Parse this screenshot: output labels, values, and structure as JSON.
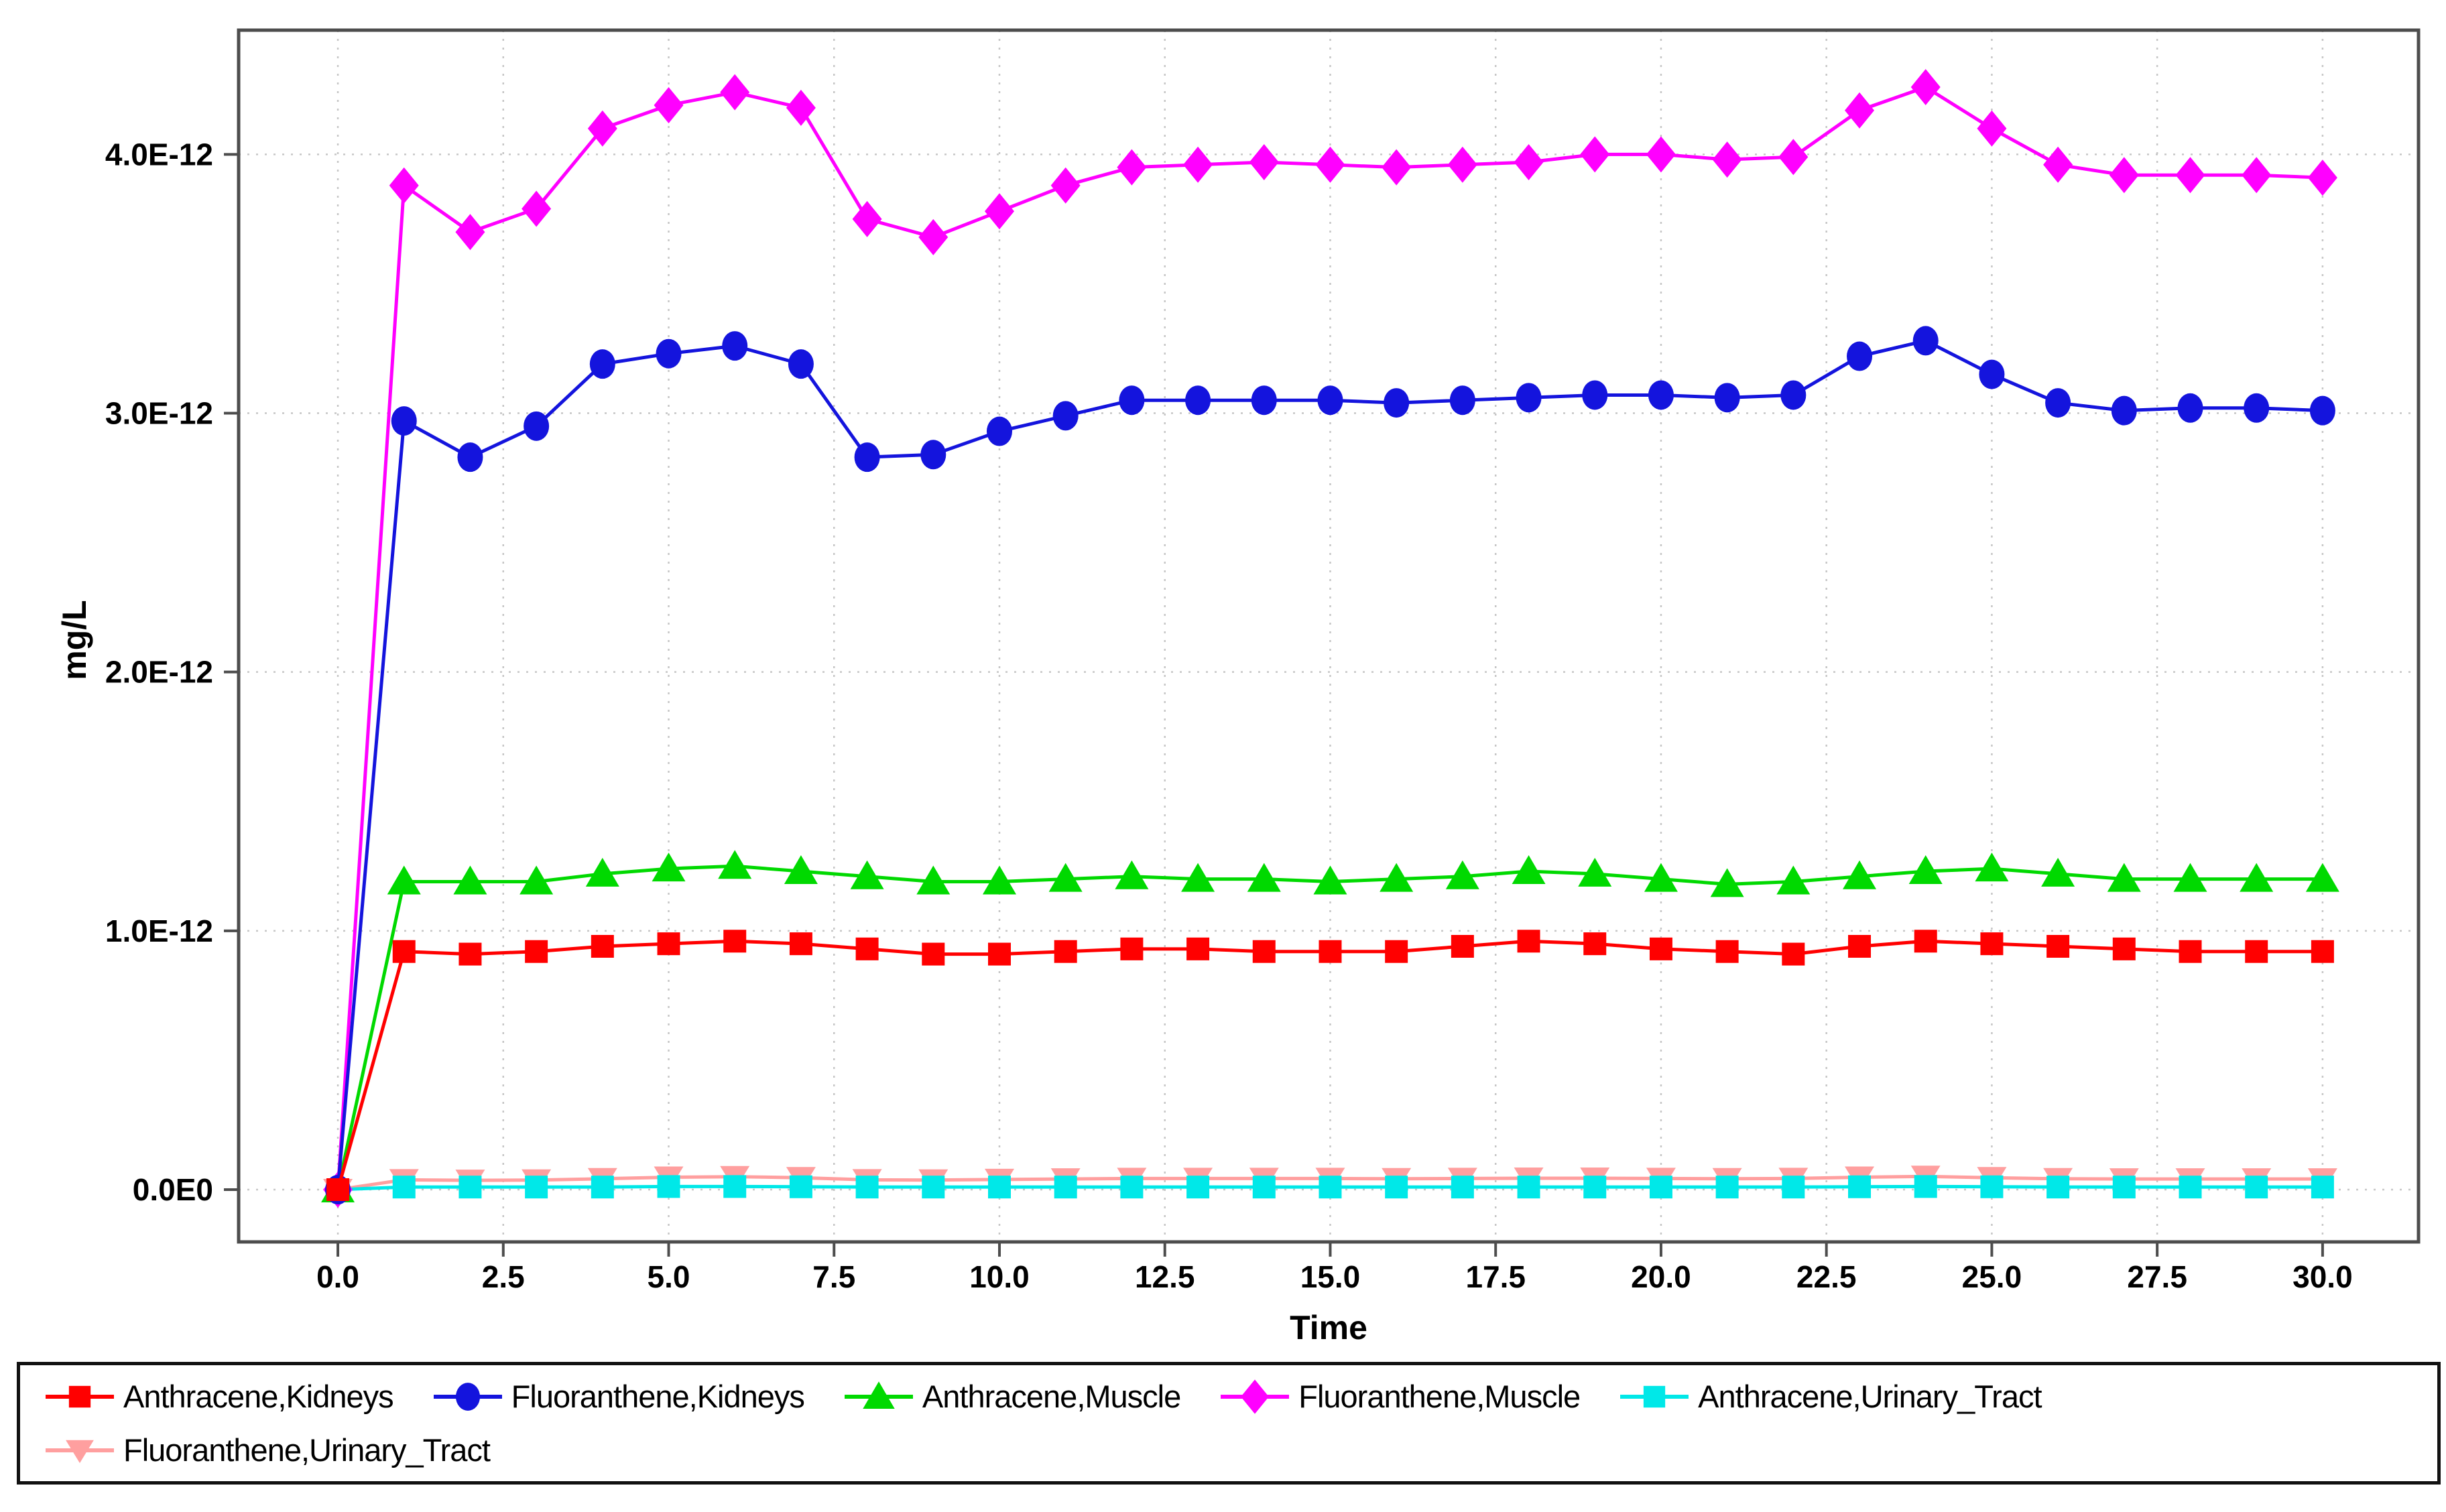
{
  "chart_data": {
    "type": "line",
    "title": "",
    "xlabel": "Time",
    "ylabel": "mg/L",
    "grid": "dotted",
    "legend_position": "bottom",
    "xlim": [
      -1.5,
      31.45
    ],
    "ylim": [
      -2.02e-13,
      4.48e-12
    ],
    "x_ticks": {
      "values": [
        0,
        2.5,
        5,
        7.5,
        10,
        12.5,
        15,
        17.5,
        20,
        22.5,
        25,
        27.5,
        30
      ],
      "labels": [
        "0.0",
        "2.5",
        "5.0",
        "7.5",
        "10.0",
        "12.5",
        "15.0",
        "17.5",
        "20.0",
        "22.5",
        "25.0",
        "27.5",
        "30.0"
      ]
    },
    "y_ticks": {
      "values": [
        0,
        1e-12,
        2e-12,
        3e-12,
        4e-12
      ],
      "labels": [
        "0.0E0",
        "1.0E-12",
        "2.0E-12",
        "3.0E-12",
        "4.0E-12"
      ]
    },
    "x": [
      0,
      1,
      2,
      3,
      4,
      5,
      6,
      7,
      8,
      9,
      10,
      11,
      12,
      13,
      14,
      15,
      16,
      17,
      18,
      19,
      20,
      21,
      22,
      23,
      24,
      25,
      26,
      27,
      28,
      29,
      30
    ],
    "series": [
      {
        "name": "Anthracene,Kidneys",
        "color": "#ff0000",
        "marker": "square",
        "values": [
          0,
          9.2e-13,
          9.1e-13,
          9.2e-13,
          9.4e-13,
          9.5e-13,
          9.6e-13,
          9.5e-13,
          9.3e-13,
          9.1e-13,
          9.1e-13,
          9.2e-13,
          9.3e-13,
          9.3e-13,
          9.2e-13,
          9.2e-13,
          9.2e-13,
          9.4e-13,
          9.6e-13,
          9.5e-13,
          9.3e-13,
          9.2e-13,
          9.1e-13,
          9.4e-13,
          9.6e-13,
          9.5e-13,
          9.4e-13,
          9.3e-13,
          9.2e-13,
          9.2e-13,
          9.2e-13
        ]
      },
      {
        "name": "Fluoranthene,Kidneys",
        "color": "#1414dd",
        "marker": "circle",
        "values": [
          0,
          2.97e-12,
          2.83e-12,
          2.95e-12,
          3.19e-12,
          3.23e-12,
          3.26e-12,
          3.19e-12,
          2.83e-12,
          2.84e-12,
          2.93e-12,
          2.99e-12,
          3.05e-12,
          3.05e-12,
          3.05e-12,
          3.05e-12,
          3.04e-12,
          3.05e-12,
          3.06e-12,
          3.07e-12,
          3.07e-12,
          3.06e-12,
          3.07e-12,
          3.22e-12,
          3.28e-12,
          3.15e-12,
          3.04e-12,
          3.01e-12,
          3.02e-12,
          3.02e-12,
          3.01e-12
        ]
      },
      {
        "name": "Anthracene,Muscle",
        "color": "#00d900",
        "marker": "triangle-up",
        "values": [
          0,
          1.19e-12,
          1.19e-12,
          1.19e-12,
          1.22e-12,
          1.24e-12,
          1.25e-12,
          1.23e-12,
          1.21e-12,
          1.19e-12,
          1.19e-12,
          1.2e-12,
          1.21e-12,
          1.2e-12,
          1.2e-12,
          1.19e-12,
          1.2e-12,
          1.21e-12,
          1.23e-12,
          1.22e-12,
          1.2e-12,
          1.18e-12,
          1.19e-12,
          1.21e-12,
          1.23e-12,
          1.24e-12,
          1.22e-12,
          1.2e-12,
          1.2e-12,
          1.2e-12,
          1.2e-12
        ]
      },
      {
        "name": "Fluoranthene,Muscle",
        "color": "#ff00ff",
        "marker": "diamond",
        "values": [
          0,
          3.88e-12,
          3.7e-12,
          3.79e-12,
          4.1e-12,
          4.19e-12,
          4.24e-12,
          4.18e-12,
          3.75e-12,
          3.68e-12,
          3.78e-12,
          3.88e-12,
          3.95e-12,
          3.96e-12,
          3.97e-12,
          3.96e-12,
          3.95e-12,
          3.96e-12,
          3.97e-12,
          4e-12,
          4e-12,
          3.98e-12,
          3.99e-12,
          4.17e-12,
          4.26e-12,
          4.1e-12,
          3.96e-12,
          3.92e-12,
          3.92e-12,
          3.92e-12,
          3.91e-12
        ]
      },
      {
        "name": "Anthracene,Urinary_Tract",
        "color": "#00e8e8",
        "marker": "square",
        "values": [
          0,
          1e-14,
          1e-14,
          1e-14,
          1e-14,
          1.2e-14,
          1.2e-14,
          1.1e-14,
          1e-14,
          1e-14,
          1e-14,
          1e-14,
          1e-14,
          1e-14,
          1e-14,
          1e-14,
          1e-14,
          1e-14,
          1e-14,
          1e-14,
          1e-14,
          1e-14,
          1e-14,
          1.1e-14,
          1.2e-14,
          1.1e-14,
          1e-14,
          1e-14,
          1e-14,
          1e-14,
          1e-14
        ]
      },
      {
        "name": "Fluoranthene,Urinary_Tract",
        "color": "#ff9f9f",
        "marker": "triangle-down",
        "values": [
          0,
          3.8e-14,
          3.6e-14,
          3.7e-14,
          4.2e-14,
          4.8e-14,
          5e-14,
          4.6e-14,
          3.8e-14,
          3.7e-14,
          3.9e-14,
          4.1e-14,
          4.3e-14,
          4.3e-14,
          4.3e-14,
          4.3e-14,
          4.2e-14,
          4.3e-14,
          4.4e-14,
          4.4e-14,
          4.3e-14,
          4.2e-14,
          4.3e-14,
          4.8e-14,
          5.1e-14,
          4.6e-14,
          4.2e-14,
          4.1e-14,
          4.1e-14,
          4.1e-14,
          4.1e-14
        ]
      }
    ],
    "legend_rows": [
      [
        0,
        1,
        2,
        3,
        4
      ],
      [
        5
      ]
    ]
  }
}
